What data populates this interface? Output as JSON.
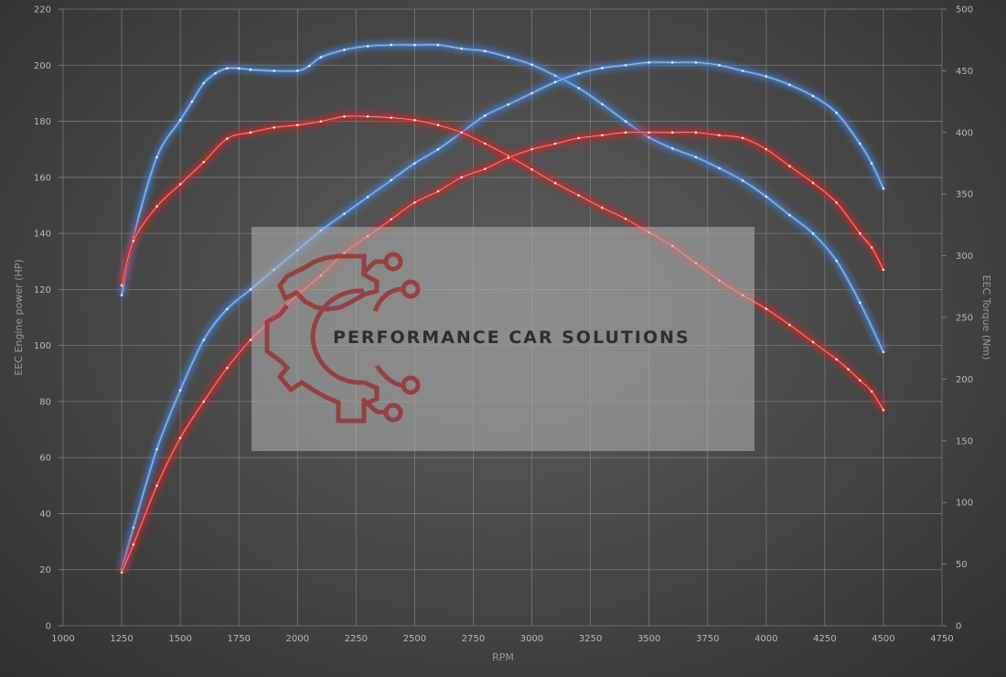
{
  "chart_data": {
    "type": "line",
    "xlabel": "RPM",
    "ylabel_left": "EEC Engine power (HP)",
    "ylabel_right": "EEC Torque (Nm)",
    "xlim": [
      1000,
      4750
    ],
    "ylim_left": [
      0,
      220
    ],
    "ylim_right": [
      0,
      500
    ],
    "x_ticks": [
      1000,
      1250,
      1500,
      1750,
      2000,
      2250,
      2500,
      2750,
      3000,
      3250,
      3500,
      3750,
      4000,
      4250,
      4500,
      4750
    ],
    "y_left_ticks": [
      0,
      20,
      40,
      60,
      80,
      100,
      120,
      140,
      160,
      180,
      200,
      220
    ],
    "y_right_ticks": [
      0,
      50,
      100,
      150,
      200,
      250,
      300,
      350,
      400,
      450,
      500
    ],
    "grid": true,
    "series": [
      {
        "axis": "right",
        "color": "#4a86d8",
        "points": [
          [
            1250,
            268
          ],
          [
            1300,
            315
          ],
          [
            1400,
            380
          ],
          [
            1500,
            410
          ],
          [
            1550,
            425
          ],
          [
            1600,
            440
          ],
          [
            1650,
            448
          ],
          [
            1700,
            452
          ],
          [
            1750,
            452
          ],
          [
            1800,
            451
          ],
          [
            1900,
            450
          ],
          [
            2000,
            450
          ],
          [
            2050,
            454
          ],
          [
            2100,
            461
          ],
          [
            2200,
            467
          ],
          [
            2300,
            470
          ],
          [
            2400,
            471
          ],
          [
            2500,
            471
          ],
          [
            2600,
            471
          ],
          [
            2700,
            468
          ],
          [
            2800,
            466
          ],
          [
            2900,
            461
          ],
          [
            3000,
            455
          ],
          [
            3100,
            446
          ],
          [
            3200,
            436
          ],
          [
            3300,
            423
          ],
          [
            3400,
            409
          ],
          [
            3500,
            396
          ],
          [
            3600,
            387
          ],
          [
            3700,
            380
          ],
          [
            3800,
            371
          ],
          [
            3900,
            361
          ],
          [
            4000,
            348
          ],
          [
            4100,
            333
          ],
          [
            4200,
            318
          ],
          [
            4300,
            296
          ],
          [
            4400,
            262
          ],
          [
            4500,
            222
          ]
        ]
      },
      {
        "axis": "left",
        "color": "#4a86d8",
        "points": [
          [
            1250,
            20
          ],
          [
            1300,
            35
          ],
          [
            1400,
            63
          ],
          [
            1500,
            84
          ],
          [
            1600,
            102
          ],
          [
            1700,
            113
          ],
          [
            1800,
            120
          ],
          [
            1900,
            127
          ],
          [
            2000,
            134
          ],
          [
            2100,
            141
          ],
          [
            2200,
            147
          ],
          [
            2300,
            153
          ],
          [
            2400,
            159
          ],
          [
            2500,
            165
          ],
          [
            2600,
            170
          ],
          [
            2700,
            176
          ],
          [
            2800,
            182
          ],
          [
            2900,
            186
          ],
          [
            3000,
            190
          ],
          [
            3100,
            194
          ],
          [
            3200,
            197
          ],
          [
            3300,
            199
          ],
          [
            3400,
            200
          ],
          [
            3500,
            201
          ],
          [
            3600,
            201
          ],
          [
            3700,
            201
          ],
          [
            3800,
            200
          ],
          [
            3900,
            198
          ],
          [
            4000,
            196
          ],
          [
            4100,
            193
          ],
          [
            4200,
            189
          ],
          [
            4300,
            183
          ],
          [
            4400,
            172
          ],
          [
            4450,
            165
          ],
          [
            4500,
            156
          ]
        ]
      },
      {
        "axis": "right",
        "color": "#d02828",
        "points": [
          [
            1250,
            276
          ],
          [
            1300,
            312
          ],
          [
            1400,
            340
          ],
          [
            1500,
            358
          ],
          [
            1600,
            376
          ],
          [
            1700,
            395
          ],
          [
            1800,
            400
          ],
          [
            1900,
            404
          ],
          [
            2000,
            406
          ],
          [
            2100,
            409
          ],
          [
            2200,
            413
          ],
          [
            2300,
            413
          ],
          [
            2400,
            412
          ],
          [
            2500,
            410
          ],
          [
            2600,
            406
          ],
          [
            2700,
            400
          ],
          [
            2800,
            391
          ],
          [
            2900,
            381
          ],
          [
            3000,
            370
          ],
          [
            3100,
            359
          ],
          [
            3200,
            349
          ],
          [
            3300,
            339
          ],
          [
            3400,
            330
          ],
          [
            3500,
            319
          ],
          [
            3600,
            308
          ],
          [
            3700,
            294
          ],
          [
            3800,
            280
          ],
          [
            3900,
            268
          ],
          [
            4000,
            257
          ],
          [
            4100,
            244
          ],
          [
            4200,
            230
          ],
          [
            4300,
            216
          ],
          [
            4350,
            208
          ],
          [
            4400,
            199
          ],
          [
            4450,
            190
          ],
          [
            4500,
            175
          ]
        ]
      },
      {
        "axis": "left",
        "color": "#d02828",
        "points": [
          [
            1250,
            19
          ],
          [
            1300,
            29
          ],
          [
            1400,
            50
          ],
          [
            1500,
            67
          ],
          [
            1600,
            80
          ],
          [
            1700,
            92
          ],
          [
            1800,
            102
          ],
          [
            1900,
            110
          ],
          [
            2000,
            118
          ],
          [
            2100,
            125
          ],
          [
            2200,
            133
          ],
          [
            2300,
            139
          ],
          [
            2400,
            145
          ],
          [
            2500,
            151
          ],
          [
            2600,
            155
          ],
          [
            2700,
            160
          ],
          [
            2800,
            163
          ],
          [
            2900,
            167
          ],
          [
            3000,
            170
          ],
          [
            3100,
            172
          ],
          [
            3200,
            174
          ],
          [
            3300,
            175
          ],
          [
            3400,
            176
          ],
          [
            3500,
            176
          ],
          [
            3600,
            176
          ],
          [
            3700,
            176
          ],
          [
            3800,
            175
          ],
          [
            3900,
            174
          ],
          [
            4000,
            170
          ],
          [
            4100,
            164
          ],
          [
            4200,
            158
          ],
          [
            4300,
            151
          ],
          [
            4400,
            140
          ],
          [
            4450,
            135
          ],
          [
            4500,
            127
          ]
        ]
      }
    ],
    "watermark": "PERFORMANCE CAR SOLUTIONS"
  }
}
